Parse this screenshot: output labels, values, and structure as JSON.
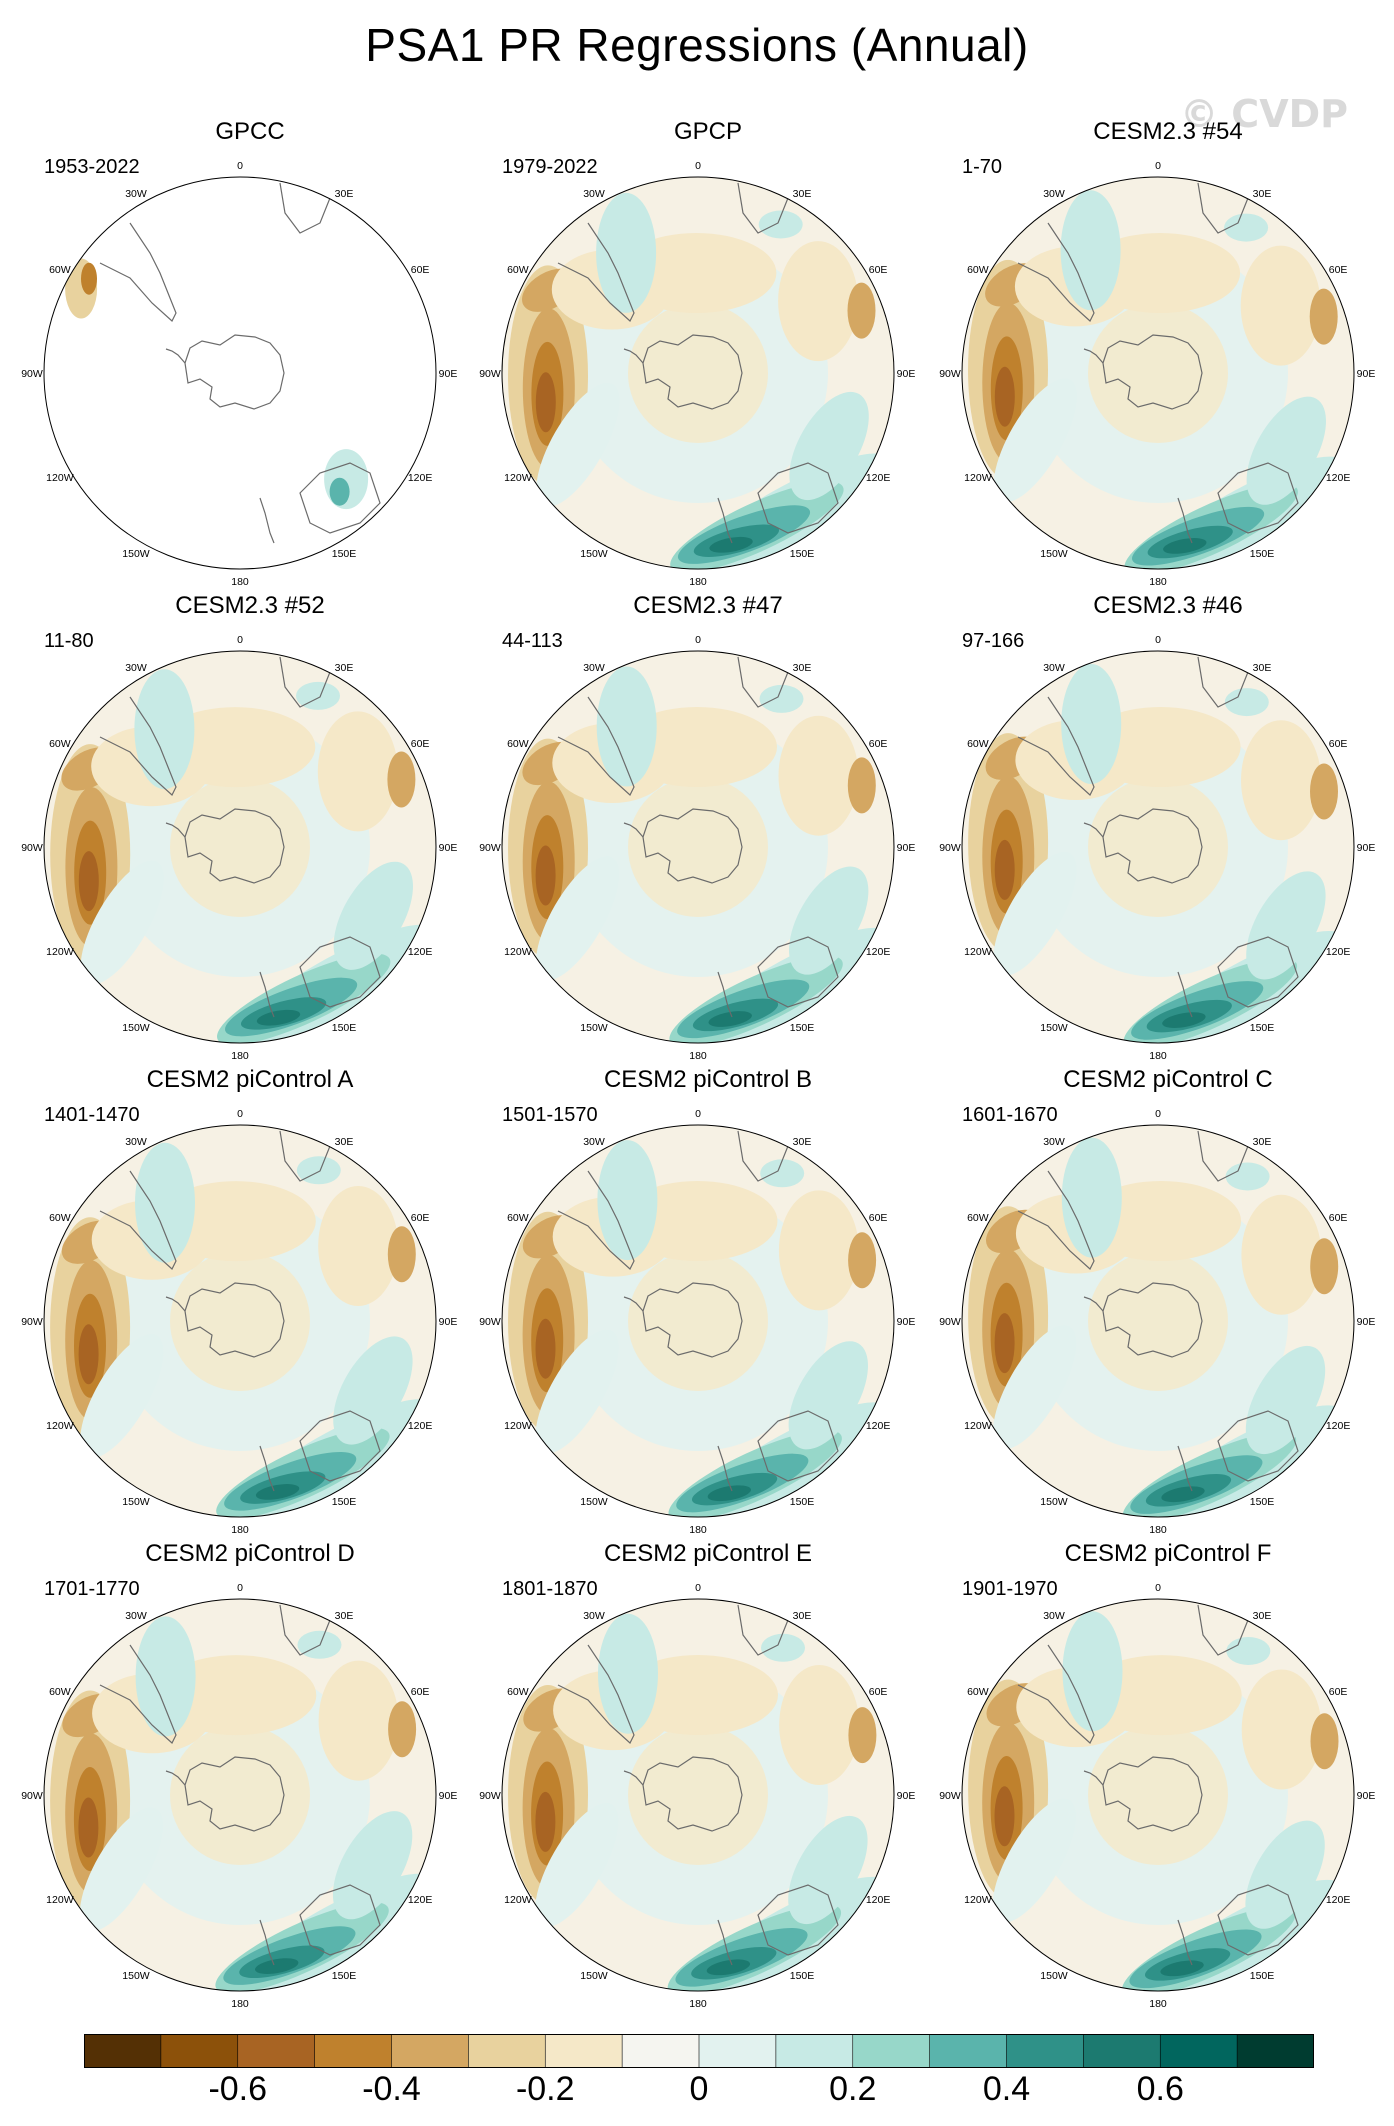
{
  "title": "PSA1 PR Regressions (Annual)",
  "watermark": "© CVDP",
  "longitude_labels": [
    "0",
    "30E",
    "60E",
    "90E",
    "120E",
    "150E",
    "180",
    "150W",
    "120W",
    "90W",
    "60W",
    "30W"
  ],
  "panels": [
    {
      "title": "GPCC",
      "years": "1953-2022",
      "style": "gpcc"
    },
    {
      "title": "GPCP",
      "years": "1979-2022",
      "style": "full"
    },
    {
      "title": "CESM2.3 #54",
      "years": "1-70",
      "style": "full"
    },
    {
      "title": "CESM2.3 #52",
      "years": "11-80",
      "style": "full"
    },
    {
      "title": "CESM2.3 #47",
      "years": "44-113",
      "style": "full"
    },
    {
      "title": "CESM2.3 #46",
      "years": "97-166",
      "style": "full"
    },
    {
      "title": "CESM2 piControl A",
      "years": "1401-1470",
      "style": "full"
    },
    {
      "title": "CESM2 piControl B",
      "years": "1501-1570",
      "style": "full"
    },
    {
      "title": "CESM2 piControl C",
      "years": "1601-1670",
      "style": "full"
    },
    {
      "title": "CESM2 piControl D",
      "years": "1701-1770",
      "style": "full"
    },
    {
      "title": "CESM2 piControl E",
      "years": "1801-1870",
      "style": "full"
    },
    {
      "title": "CESM2 piControl F",
      "years": "1901-1970",
      "style": "full"
    }
  ],
  "colorbar": {
    "colors": [
      "#543005",
      "#8c510a",
      "#a86423",
      "#bf812d",
      "#d4a762",
      "#e8d29e",
      "#f5e8c8",
      "#f5f5f0",
      "#e2f2ef",
      "#c7eae5",
      "#97d7c9",
      "#5ab4ac",
      "#2f9188",
      "#1c7a70",
      "#01665e",
      "#003c30"
    ],
    "labels": [
      "-0.6",
      "-0.4",
      "-0.2",
      "0",
      "0.2",
      "0.4",
      "0.6"
    ]
  },
  "colors": {
    "land_outline": "#6b6b6b",
    "ocean_background": "#f6f1e4"
  }
}
